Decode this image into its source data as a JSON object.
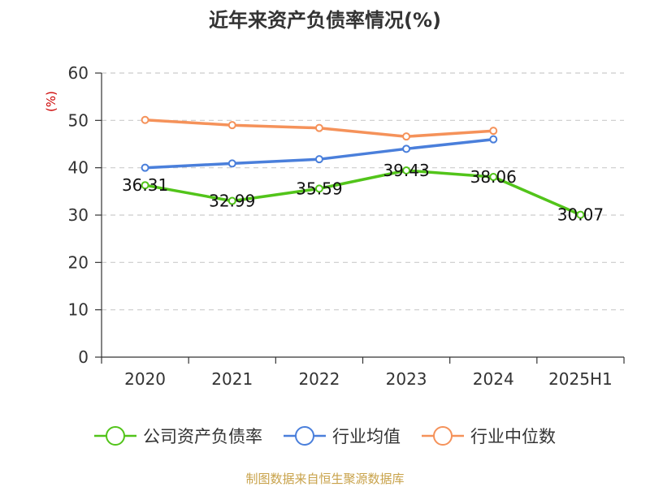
{
  "chart_data": {
    "type": "line",
    "title": "近年来资产负债率情况(%)",
    "ylabel": "(%)",
    "xlabel": "",
    "categories": [
      "2020",
      "2021",
      "2022",
      "2023",
      "2024",
      "2025H1"
    ],
    "ylim": [
      0,
      60
    ],
    "yticks": [
      0,
      10,
      20,
      30,
      40,
      50,
      60
    ],
    "grid": true,
    "legend_position": "bottom",
    "series": [
      {
        "name": "公司资产负债率",
        "color": "#52c41a",
        "values": [
          36.31,
          32.99,
          35.59,
          39.43,
          38.06,
          30.07
        ],
        "data_labels": [
          "36.31",
          "32.99",
          "35.59",
          "39.43",
          "38.06",
          "30.07"
        ]
      },
      {
        "name": "行业均值",
        "color": "#4a7fdb",
        "values": [
          40.0,
          40.9,
          41.8,
          44.0,
          46.0,
          null
        ]
      },
      {
        "name": "行业中位数",
        "color": "#f5925a",
        "values": [
          50.1,
          49.0,
          48.4,
          46.6,
          47.8,
          null
        ]
      }
    ]
  },
  "colors": {
    "title": "#333333",
    "axis": "#333333",
    "grid": "#cccccc",
    "unit_label": "#cc0000",
    "source": "#c8a24a"
  },
  "footer": {
    "source": "制图数据来自恒生聚源数据库"
  }
}
